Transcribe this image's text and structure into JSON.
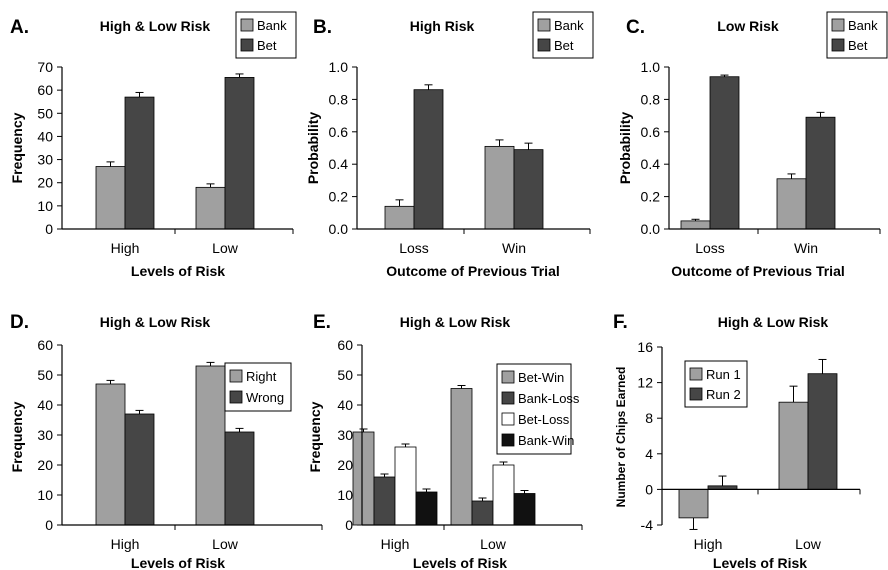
{
  "colors": {
    "light": "#a0a0a0",
    "dark": "#464646",
    "white": "#ffffff",
    "black": "#111111",
    "axis": "#000000"
  },
  "chart_data": [
    {
      "letter": "A.",
      "type": "bar",
      "title": "High & Low Risk",
      "categories": [
        "High",
        "Low"
      ],
      "series": [
        {
          "name": "Bank",
          "color": "light",
          "values": [
            27,
            18
          ],
          "errors": [
            2,
            1.5
          ]
        },
        {
          "name": "Bet",
          "color": "dark",
          "values": [
            57,
            65.5
          ],
          "errors": [
            2,
            1.5
          ]
        }
      ],
      "ylim": [
        0,
        70
      ],
      "yticks": [
        "0",
        "10",
        "20",
        "30",
        "40",
        "50",
        "60",
        "70"
      ],
      "xlabel": "Levels of Risk",
      "ylabel": "Frequency",
      "legend": "top-right"
    },
    {
      "letter": "B.",
      "type": "bar",
      "title": "High Risk",
      "categories": [
        "Loss",
        "Win"
      ],
      "series": [
        {
          "name": "Bank",
          "color": "light",
          "values": [
            0.14,
            0.51
          ],
          "errors": [
            0.04,
            0.04
          ]
        },
        {
          "name": "Bet",
          "color": "dark",
          "values": [
            0.86,
            0.49
          ],
          "errors": [
            0.03,
            0.04
          ]
        }
      ],
      "ylim": [
        0,
        1
      ],
      "yticks": [
        "0.0",
        "0.2",
        "0.4",
        "0.6",
        "0.8",
        "1.0"
      ],
      "xlabel": "Outcome of Previous Trial",
      "ylabel": "Probability",
      "legend": "top-right"
    },
    {
      "letter": "C.",
      "type": "bar",
      "title": "Low Risk",
      "categories": [
        "Loss",
        "Win"
      ],
      "series": [
        {
          "name": "Bank",
          "color": "light",
          "values": [
            0.05,
            0.31
          ],
          "errors": [
            0.01,
            0.03
          ]
        },
        {
          "name": "Bet",
          "color": "dark",
          "values": [
            0.94,
            0.69
          ],
          "errors": [
            0.01,
            0.03
          ]
        }
      ],
      "ylim": [
        0,
        1
      ],
      "yticks": [
        "0.0",
        "0.2",
        "0.4",
        "0.6",
        "0.8",
        "1.0"
      ],
      "xlabel": "Outcome of Previous Trial",
      "ylabel": "Probability",
      "legend": "top-right"
    },
    {
      "letter": "D.",
      "type": "bar",
      "title": "High & Low Risk",
      "categories": [
        "High",
        "Low"
      ],
      "series": [
        {
          "name": "Right",
          "color": "light",
          "values": [
            47,
            53
          ],
          "errors": [
            1.2,
            1.2
          ]
        },
        {
          "name": "Wrong",
          "color": "dark",
          "values": [
            37,
            31
          ],
          "errors": [
            1.2,
            1.2
          ]
        }
      ],
      "ylim": [
        0,
        60
      ],
      "yticks": [
        "0",
        "10",
        "20",
        "30",
        "40",
        "50",
        "60"
      ],
      "xlabel": "Levels of Risk",
      "ylabel": "Frequency",
      "legend": "right"
    },
    {
      "letter": "E.",
      "type": "bar",
      "title": "High & Low Risk",
      "categories": [
        "High",
        "Low"
      ],
      "series": [
        {
          "name": "Bet-Win",
          "color": "light",
          "values": [
            31,
            45.5
          ],
          "errors": [
            1,
            1
          ]
        },
        {
          "name": "Bank-Loss",
          "color": "dark",
          "values": [
            16,
            8
          ],
          "errors": [
            1,
            1
          ]
        },
        {
          "name": "Bet-Loss",
          "color": "white",
          "values": [
            26,
            20
          ],
          "errors": [
            1,
            1
          ]
        },
        {
          "name": "Bank-Win",
          "color": "black",
          "values": [
            11,
            10.5
          ],
          "errors": [
            1,
            1
          ]
        }
      ],
      "ylim": [
        0,
        60
      ],
      "yticks": [
        "0",
        "10",
        "20",
        "30",
        "40",
        "50",
        "60"
      ],
      "xlabel": "Levels of Risk",
      "ylabel": "Frequency",
      "legend": "right"
    },
    {
      "letter": "F.",
      "type": "bar",
      "title": "High & Low Risk",
      "categories": [
        "High",
        "Low"
      ],
      "series": [
        {
          "name": "Run 1",
          "color": "light",
          "values": [
            -3.2,
            9.8
          ],
          "errors": [
            1.3,
            1.8
          ]
        },
        {
          "name": "Run 2",
          "color": "dark",
          "values": [
            0.4,
            13
          ],
          "errors": [
            1.1,
            1.6
          ]
        }
      ],
      "ylim": [
        -4,
        16
      ],
      "yticks": [
        "-4",
        "0",
        "4",
        "8",
        "12",
        "16"
      ],
      "xlabel": "Levels of Risk",
      "ylabel": "Number of Chips Earned",
      "legend": "top-left"
    }
  ]
}
